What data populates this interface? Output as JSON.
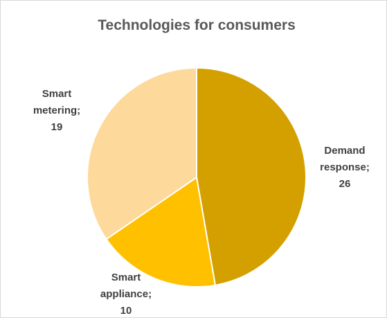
{
  "chart_data": {
    "type": "pie",
    "title": "Technologies for consumers",
    "slices": [
      {
        "name": "Demand response",
        "value": 26,
        "color": "#D4A000",
        "label_lines": [
          "Demand",
          "response;",
          "26"
        ]
      },
      {
        "name": "Smart appliance",
        "value": 10,
        "color": "#FFC000",
        "label_lines": [
          "Smart",
          "appliance;",
          "10"
        ]
      },
      {
        "name": "Smart metering",
        "value": 19,
        "color": "#FDD99B",
        "label_lines": [
          "Smart",
          "metering;",
          "19"
        ]
      }
    ],
    "legend": "none"
  }
}
